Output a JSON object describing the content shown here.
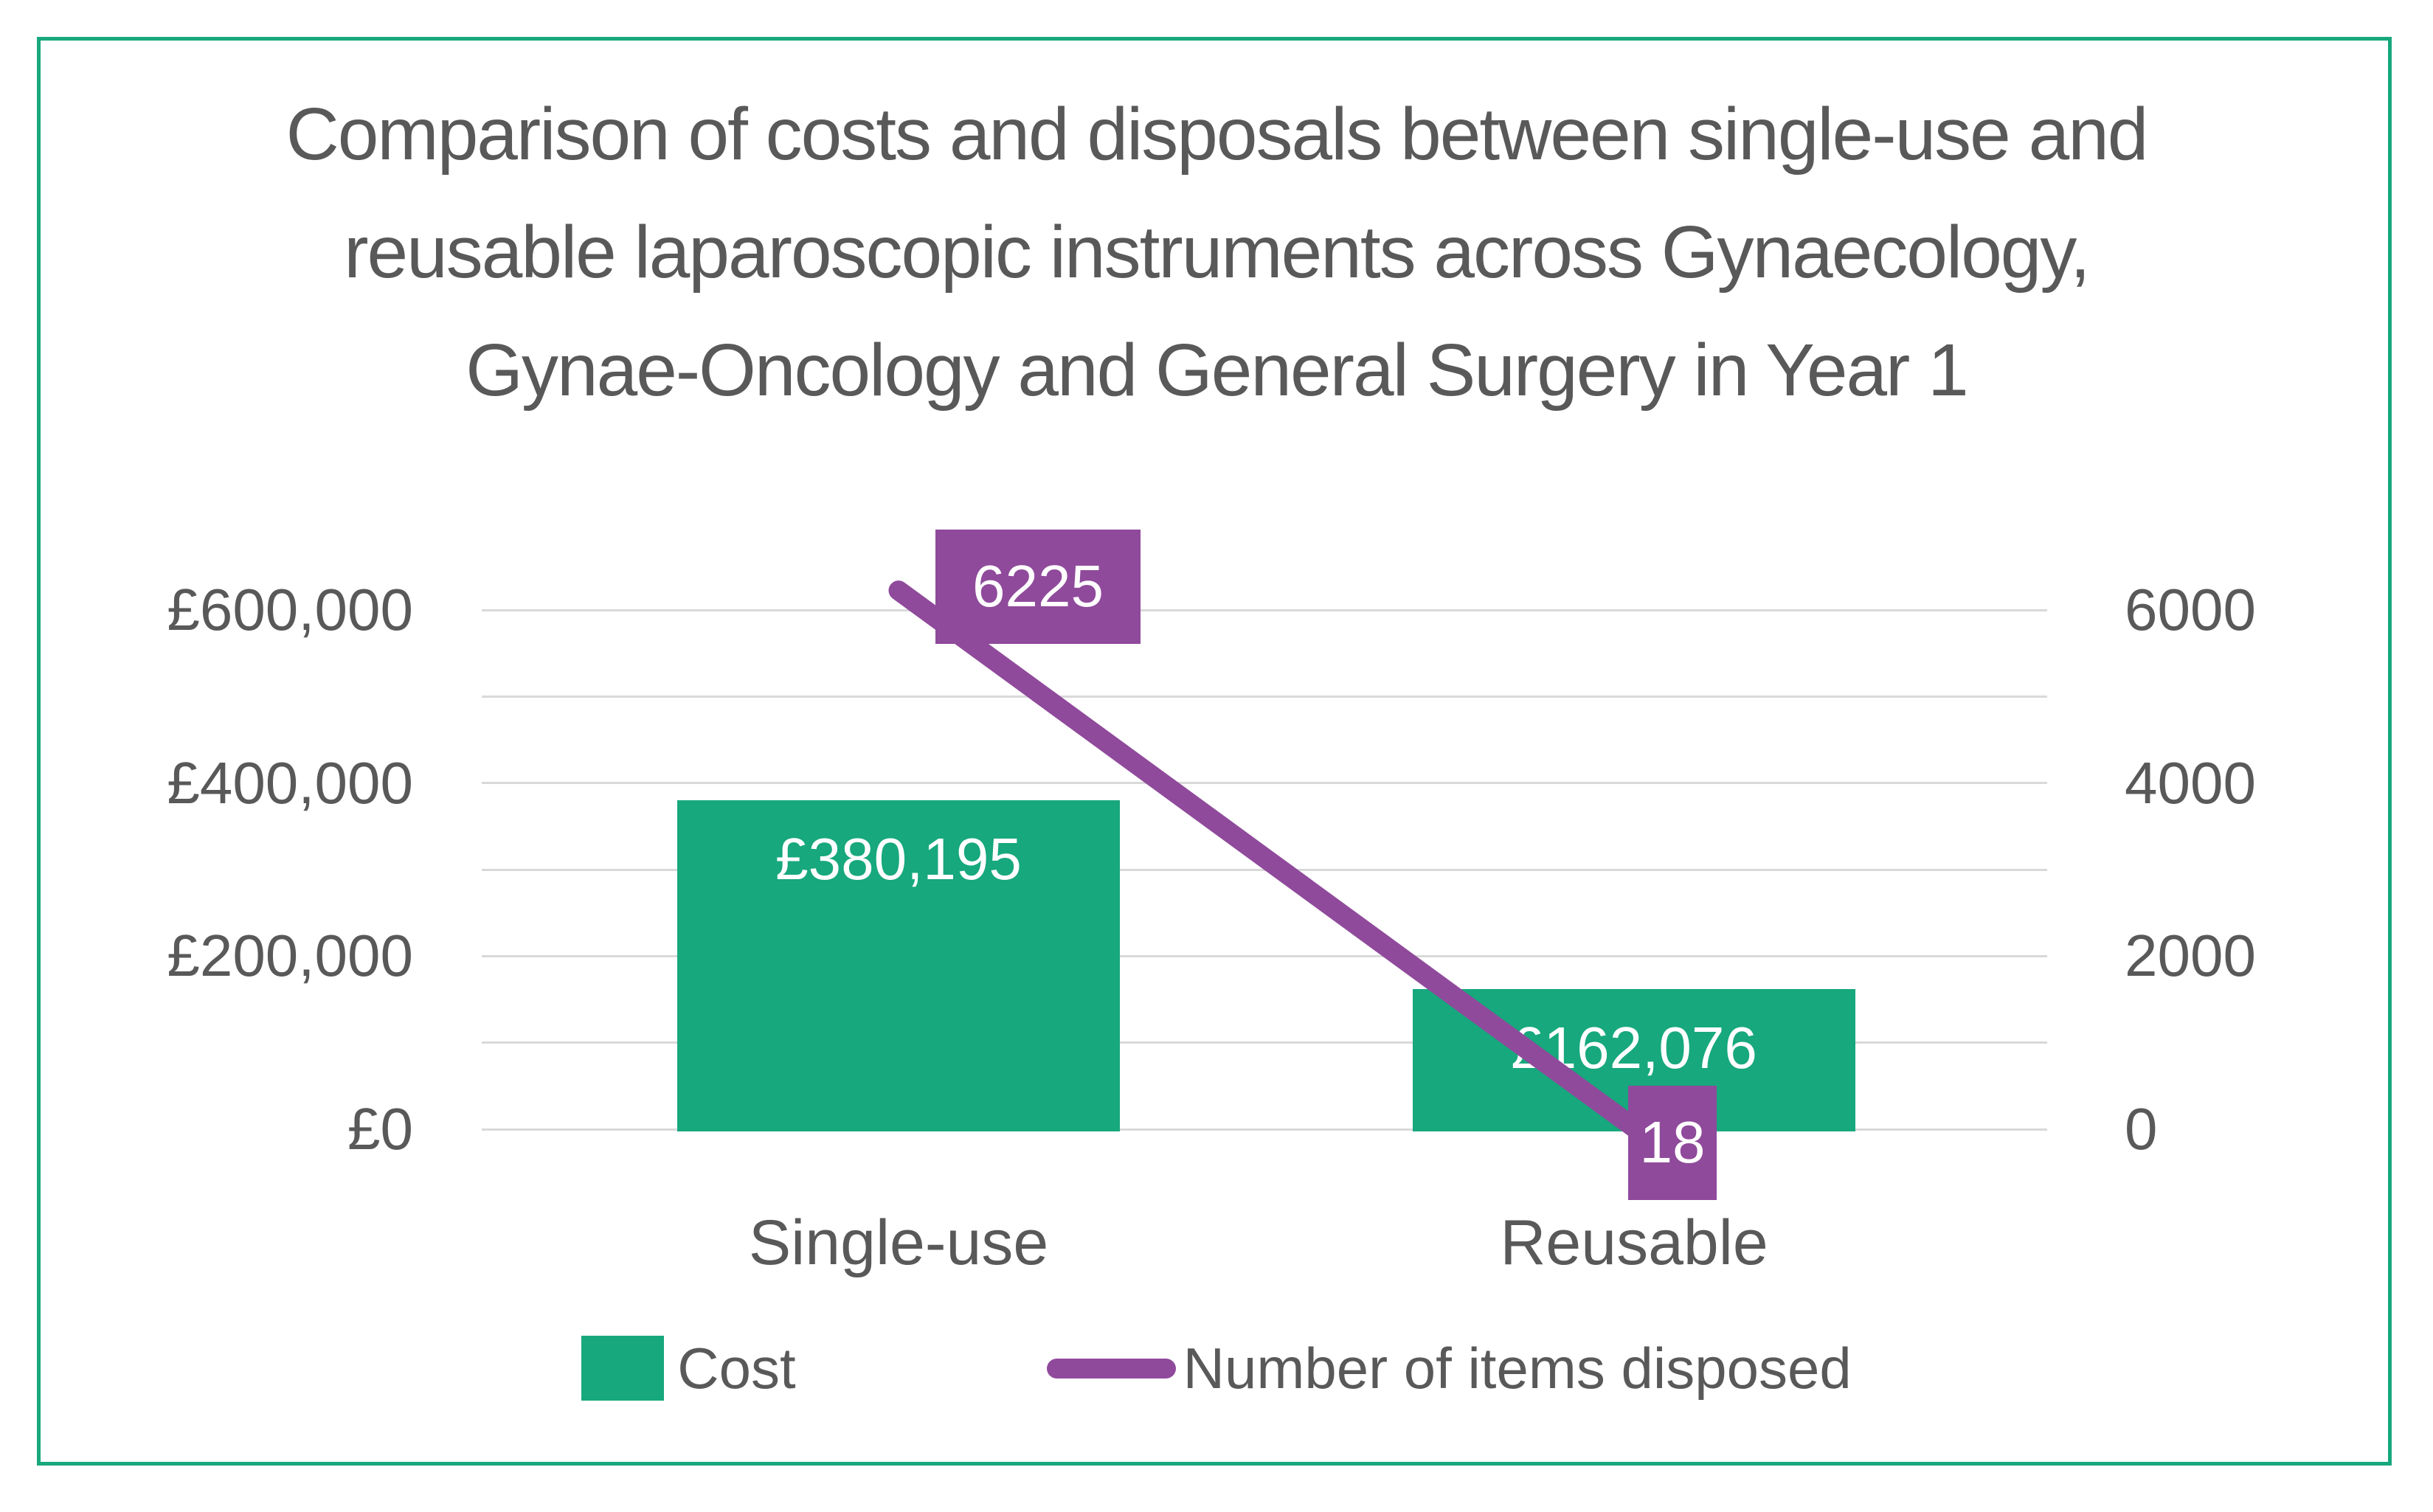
{
  "chart_data": {
    "type": "combo-bar-line",
    "title": "Comparison of costs and disposals between single-use and reusable laparoscopic instruments across Gynaecology, Gynae-Oncology and General Surgery in Year 1",
    "title_lines": [
      "Comparison of costs and disposals between single-use and",
      "reusable laparoscopic instruments across Gynaecology,",
      "Gynae-Oncology and General Surgery in Year 1"
    ],
    "categories": [
      "Single-use",
      "Reusable"
    ],
    "series": [
      {
        "name": "Cost",
        "type": "bar",
        "axis": "left",
        "values": [
          380195,
          162076
        ],
        "labels": [
          "£380,195",
          "£162,076"
        ],
        "color": "#17a87d"
      },
      {
        "name": "Number of items disposed",
        "type": "line",
        "axis": "right",
        "values": [
          6225,
          18
        ],
        "labels": [
          "6225",
          "18"
        ],
        "color": "#8f4a9b"
      }
    ],
    "left_axis": {
      "min": 0,
      "max": 600000,
      "gridline_step": 100000,
      "ticks": [
        "£600,000",
        "£400,000",
        "£200,000",
        "£0"
      ]
    },
    "right_axis": {
      "min": 0,
      "max": 6000,
      "ticks": [
        "6000",
        "4000",
        "2000",
        "0"
      ]
    },
    "grid": true,
    "legend_position": "bottom",
    "colors": {
      "bar_green": "#17a87d",
      "line_purple": "#8f4a9b",
      "text_gray": "#595959",
      "gridline_gray": "#d9d9d9",
      "frame_green": "#17a87d",
      "data_label_white": "#ffffff"
    }
  }
}
